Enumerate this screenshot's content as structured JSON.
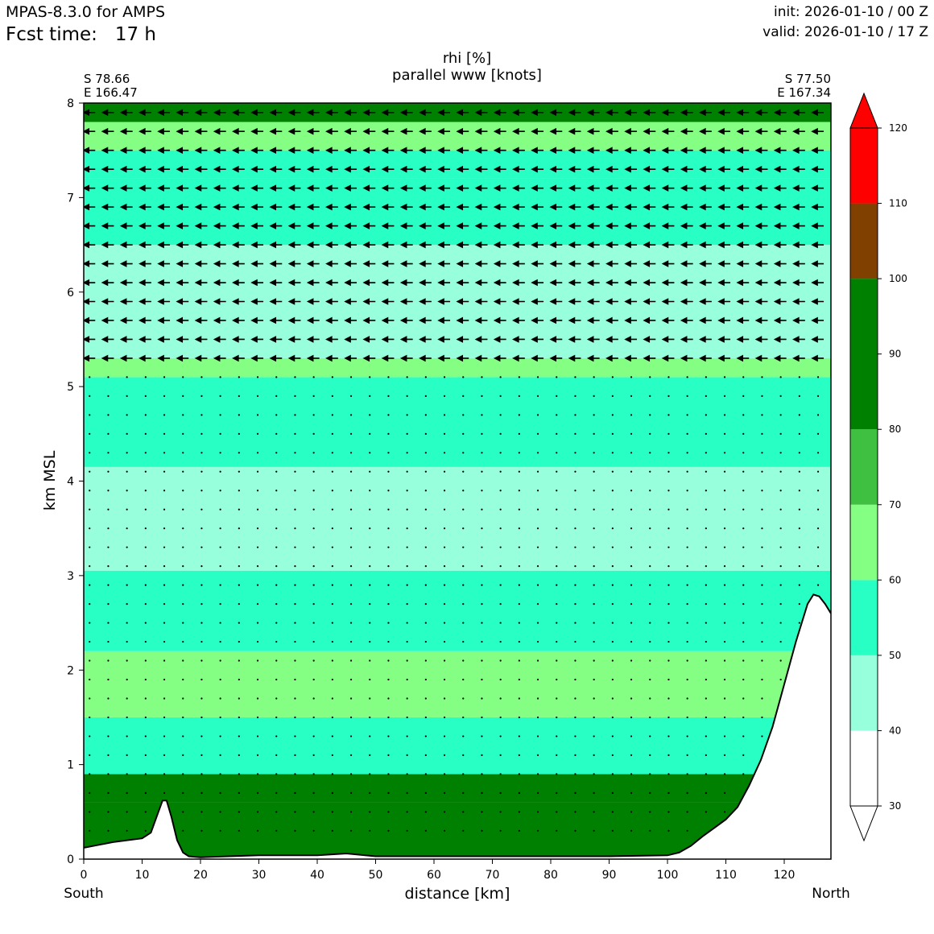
{
  "header": {
    "model": "MPAS-8.3.0 for AMPS",
    "fcst_label": "Fcst time:   17 h",
    "init": "init: 2026-01-10 / 00 Z",
    "valid": "valid: 2026-01-10 / 17 Z"
  },
  "chart_data": {
    "type": "cross-section",
    "title": "rhi [%]",
    "subtitle": "parallel www [knots]",
    "xlabel": "distance [km]",
    "ylabel": "km MSL",
    "xlim": [
      0,
      128
    ],
    "ylim": [
      0,
      8
    ],
    "x_ticks": [
      0,
      10,
      20,
      30,
      40,
      50,
      60,
      70,
      80,
      90,
      100,
      110,
      120
    ],
    "y_ticks": [
      0,
      1,
      2,
      3,
      4,
      5,
      6,
      7,
      8
    ],
    "left_endpoint": {
      "lat": "S 78.66",
      "lon": "E 166.47",
      "side": "South"
    },
    "right_endpoint": {
      "lat": "S 77.50",
      "lon": "E 167.34",
      "side": "North"
    },
    "colorbar": {
      "levels": [
        30,
        40,
        50,
        60,
        70,
        80,
        90,
        100,
        110,
        120
      ],
      "bands": [
        {
          "from": 30,
          "to": 40,
          "color": "#ffffff"
        },
        {
          "from": 40,
          "to": 50,
          "color": "#98ffdc"
        },
        {
          "from": 50,
          "to": 60,
          "color": "#28ffc4"
        },
        {
          "from": 60,
          "to": 70,
          "color": "#84ff84"
        },
        {
          "from": 70,
          "to": 80,
          "color": "#40c040"
        },
        {
          "from": 80,
          "to": 100,
          "color": "#008000"
        },
        {
          "from": 100,
          "to": 110,
          "color": "#804000"
        },
        {
          "from": 110,
          "to": 120,
          "color": "#ff0000"
        }
      ]
    },
    "rhi_layers": [
      {
        "z": [
          0.0,
          0.6
        ],
        "rhi": 90
      },
      {
        "z": [
          0.6,
          0.9
        ],
        "rhi": 90
      },
      {
        "z": [
          0.9,
          1.5
        ],
        "rhi": 55
      },
      {
        "z": [
          1.5,
          2.2
        ],
        "rhi": 65
      },
      {
        "z": [
          2.2,
          3.05
        ],
        "rhi": 55
      },
      {
        "z": [
          3.05,
          4.15
        ],
        "rhi": 45
      },
      {
        "z": [
          4.15,
          5.1
        ],
        "rhi": 55
      },
      {
        "z": [
          5.1,
          5.3
        ],
        "rhi": 65
      },
      {
        "z": [
          5.3,
          6.5
        ],
        "rhi": 45
      },
      {
        "z": [
          6.5,
          7.2
        ],
        "rhi": 55
      },
      {
        "z": [
          7.2,
          7.5
        ],
        "rhi": 55
      },
      {
        "z": [
          7.5,
          7.8
        ],
        "rhi": 65
      },
      {
        "z": [
          7.8,
          8.0
        ],
        "rhi": 90
      }
    ],
    "terrain": [
      [
        0,
        0.12
      ],
      [
        5,
        0.18
      ],
      [
        10,
        0.22
      ],
      [
        11.5,
        0.28
      ],
      [
        12.5,
        0.45
      ],
      [
        13.5,
        0.62
      ],
      [
        14.2,
        0.62
      ],
      [
        15,
        0.45
      ],
      [
        16,
        0.2
      ],
      [
        17,
        0.07
      ],
      [
        18,
        0.03
      ],
      [
        20,
        0.02
      ],
      [
        30,
        0.04
      ],
      [
        40,
        0.04
      ],
      [
        45,
        0.06
      ],
      [
        50,
        0.03
      ],
      [
        60,
        0.03
      ],
      [
        70,
        0.03
      ],
      [
        80,
        0.03
      ],
      [
        90,
        0.03
      ],
      [
        100,
        0.04
      ],
      [
        102,
        0.07
      ],
      [
        104,
        0.14
      ],
      [
        106,
        0.24
      ],
      [
        108,
        0.33
      ],
      [
        110,
        0.42
      ],
      [
        112,
        0.55
      ],
      [
        114,
        0.78
      ],
      [
        116,
        1.05
      ],
      [
        118,
        1.4
      ],
      [
        120,
        1.85
      ],
      [
        122,
        2.3
      ],
      [
        124,
        2.7
      ],
      [
        125,
        2.8
      ],
      [
        126,
        2.78
      ],
      [
        127,
        2.7
      ],
      [
        128,
        2.6
      ]
    ],
    "wind_rows_km": [
      5.3,
      5.5,
      5.7,
      5.9,
      6.1,
      6.3,
      6.5,
      6.7,
      6.9,
      7.1,
      7.3,
      7.5,
      7.7,
      7.9
    ],
    "wind_direction": "toward South",
    "wind_dots_start_km": 0.3
  }
}
